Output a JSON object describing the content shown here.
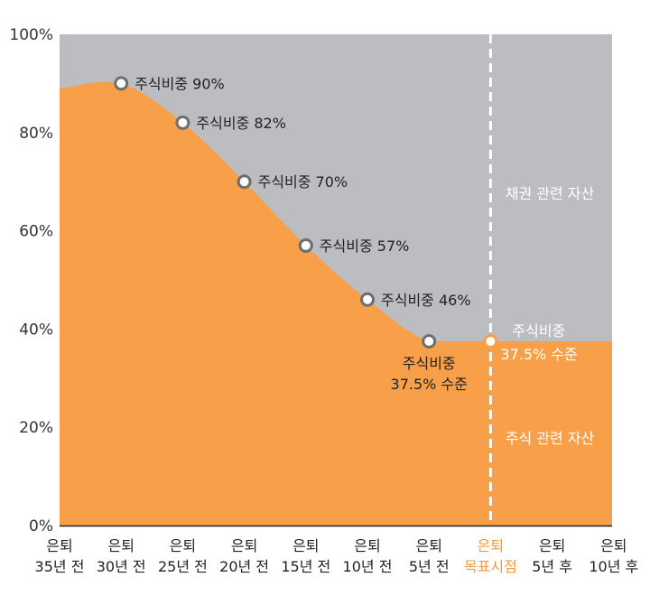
{
  "chart_data": {
    "type": "area",
    "title": "",
    "xlabel": "",
    "ylabel": "",
    "ylim": [
      0,
      100
    ],
    "y_ticks": [
      "0%",
      "20%",
      "40%",
      "60%",
      "80%",
      "100%"
    ],
    "categories": [
      [
        "은퇴",
        "35년 전"
      ],
      [
        "은퇴",
        "30년 전"
      ],
      [
        "은퇴",
        "25년 전"
      ],
      [
        "은퇴",
        "20년 전"
      ],
      [
        "은퇴",
        "15년 전"
      ],
      [
        "은퇴",
        "10년 전"
      ],
      [
        "은퇴",
        "5년 전"
      ],
      [
        "은퇴",
        "목표시점"
      ],
      [
        "은퇴",
        "5년 후"
      ],
      [
        "은퇴",
        "10년 후"
      ]
    ],
    "highlight_category_index": 7,
    "series": [
      {
        "name": "주식 관련 자산",
        "values": [
          89,
          90,
          82,
          70,
          57,
          46,
          37.5,
          37.5,
          37.5,
          37.5
        ]
      },
      {
        "name": "채권 관련 자산",
        "values": [
          11,
          10,
          18,
          30,
          43,
          54,
          62.5,
          62.5,
          62.5,
          62.5
        ]
      }
    ],
    "markers": [
      {
        "index": 1,
        "value": 90,
        "label": [
          "주식비중 90%"
        ]
      },
      {
        "index": 2,
        "value": 82,
        "label": [
          "주식비중 82%"
        ]
      },
      {
        "index": 3,
        "value": 70,
        "label": [
          "주식비중 70%"
        ]
      },
      {
        "index": 4,
        "value": 57,
        "label": [
          "주식비중 57%"
        ]
      },
      {
        "index": 5,
        "value": 46,
        "label": [
          "주식비중 46%"
        ]
      },
      {
        "index": 6,
        "value": 37.5,
        "label": [
          "주식비중",
          "37.5% 수준"
        ]
      },
      {
        "index": 7,
        "value": 37.5,
        "label": [
          "주식비중",
          "37.5% 수준"
        ]
      }
    ],
    "region_labels": {
      "bond": "채권 관련 자산",
      "equity": "주식 관련 자산"
    },
    "colors": {
      "equity": "#f7a049",
      "bond": "#bcbdc0",
      "highlight": "#f39a3a",
      "marker_stroke": "#6d6e71",
      "marker_stroke_target": "#f7a049",
      "axis": "#222222",
      "divider": "#ffffff"
    }
  }
}
